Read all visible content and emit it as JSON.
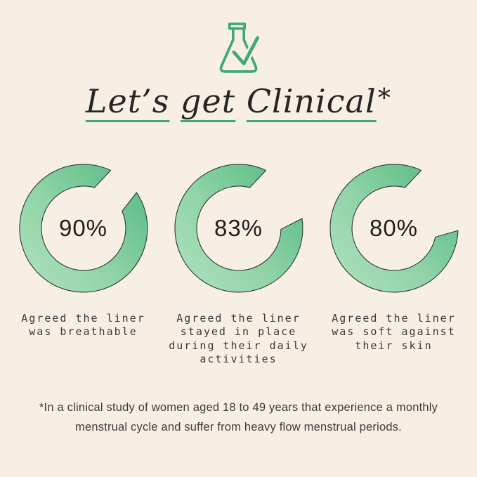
{
  "page": {
    "background_color": "#F8EFE4"
  },
  "header": {
    "icon": "flask-check-icon",
    "icon_color": "#3FA873",
    "title_words": [
      "Let’s",
      "get",
      "Clinical"
    ],
    "title_suffix": "*",
    "title_full": "Let’s get Clinical*",
    "underline_color": "#3FA873"
  },
  "chart_data": {
    "type": "donut",
    "title": "Let’s get Clinical*",
    "legend_position": "none",
    "geometry": {
      "gap_start_deg": 25,
      "outer_radius": 91,
      "inner_radius": 60
    },
    "ring_gradient": [
      "#57BB86",
      "#8FD3A6",
      "#ACE0BC"
    ],
    "ring_outline_color": "#2E3A31",
    "series": [
      {
        "value": 90,
        "label": "90%",
        "caption": "Agreed the liner was breathable"
      },
      {
        "value": 83,
        "label": "83%",
        "caption": "Agreed the liner stayed in place during their daily activities"
      },
      {
        "value": 80,
        "label": "80%",
        "caption": "Agreed the liner was soft against their skin"
      }
    ]
  },
  "footnote": {
    "lines": [
      "*In a clinical study of women aged 18 to 49 years that experience a monthly",
      "menstrual cycle and suffer from heavy flow menstrual periods."
    ]
  }
}
